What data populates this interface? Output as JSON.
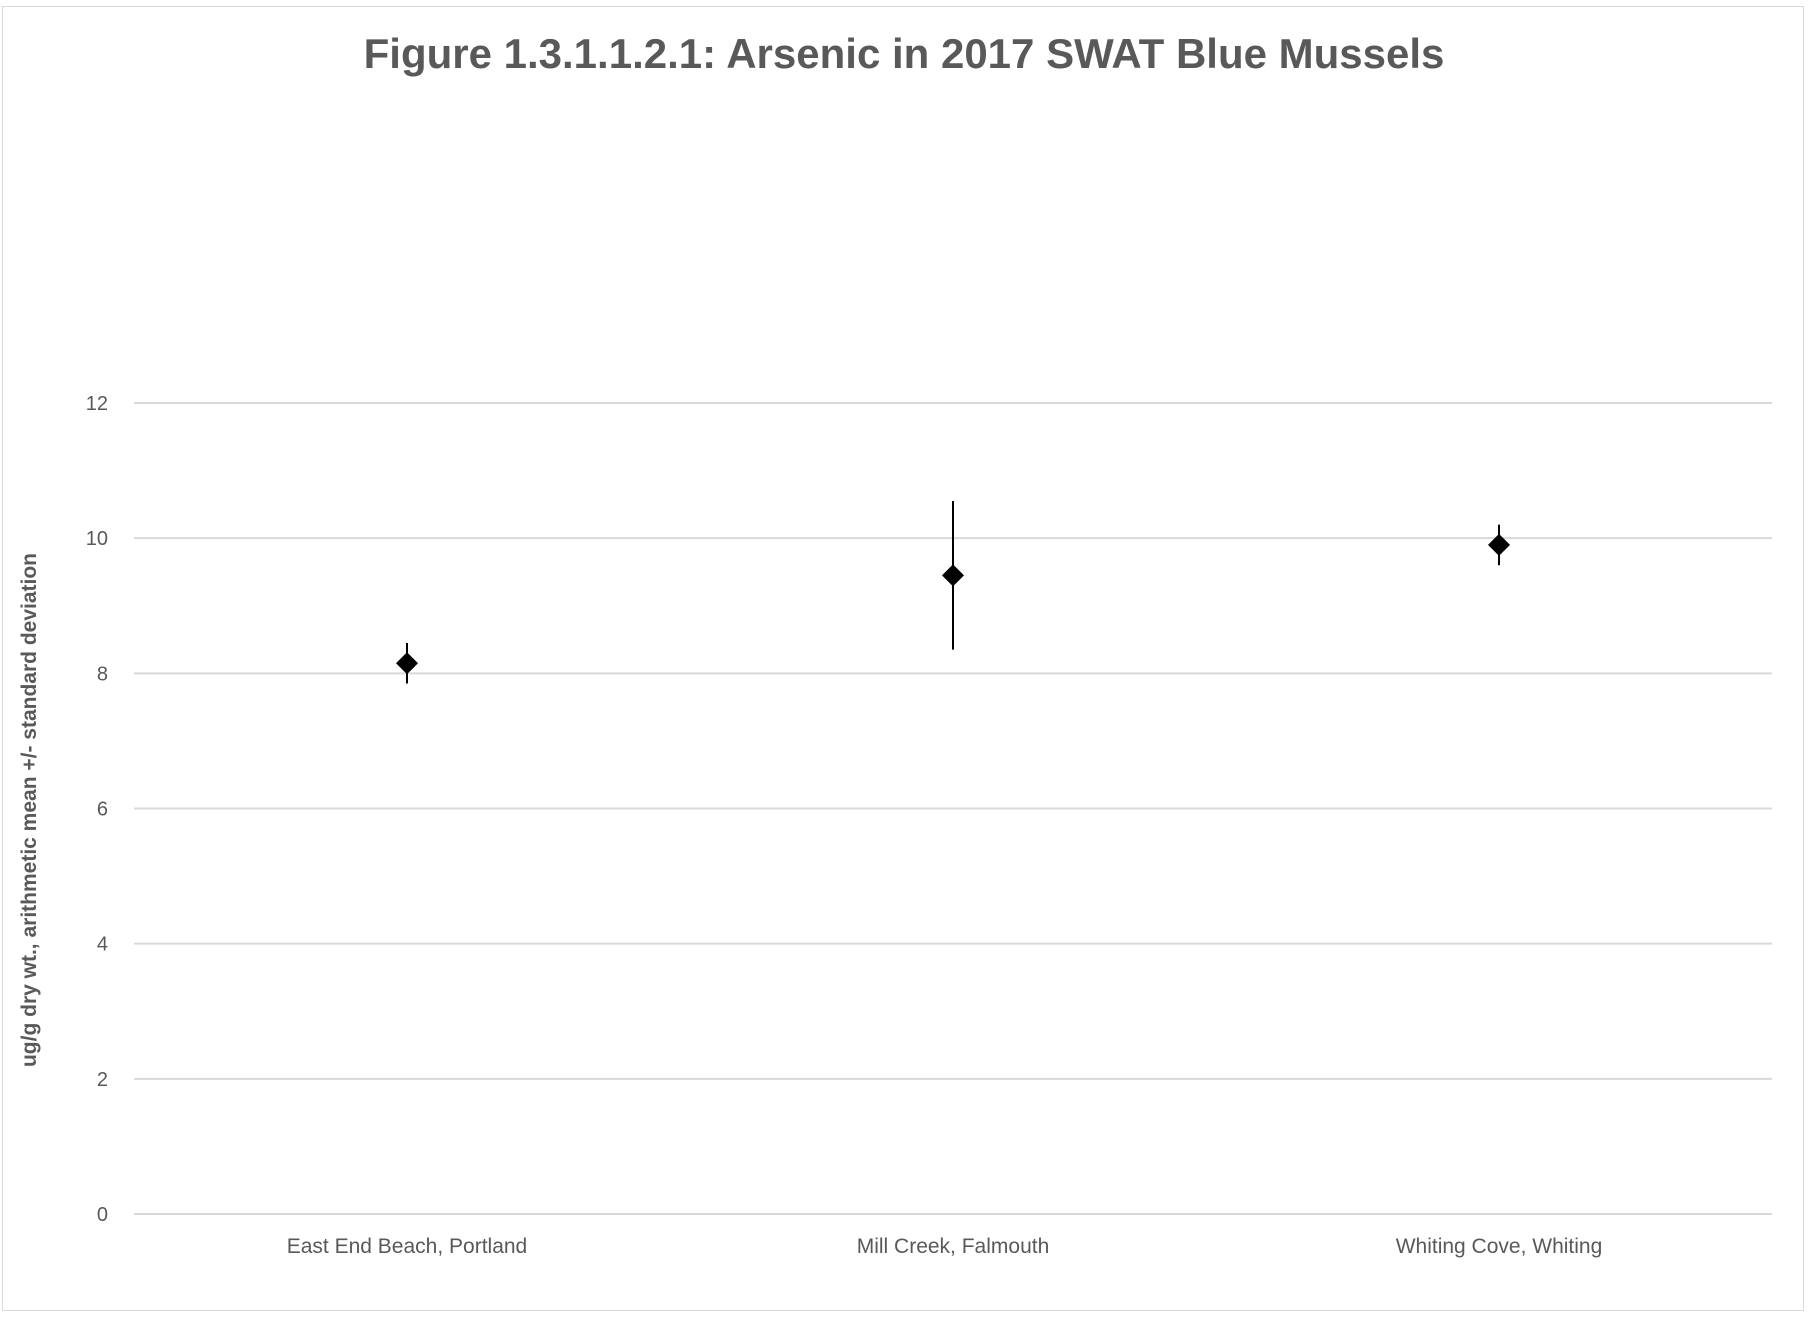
{
  "chart_data": {
    "type": "scatter",
    "title": "Figure 1.3.1.1.2.1:  Arsenic in 2017 SWAT Blue Mussels",
    "xlabel": "",
    "ylabel": "ug/g dry wt., arithmetic mean +/- standard deviation",
    "categories": [
      "East End Beach, Portland",
      "Mill Creek, Falmouth",
      "Whiting Cove, Whiting"
    ],
    "series": [
      {
        "values": [
          8.15,
          9.45,
          9.9
        ],
        "error": [
          0.3,
          1.1,
          0.3
        ]
      }
    ],
    "ylim": [
      0,
      12
    ],
    "yticks": [
      0,
      2,
      4,
      6,
      8,
      10,
      12
    ],
    "grid": true,
    "marker": "diamond",
    "colors": {
      "marker": "#000000",
      "gridline": "#d9d9d9",
      "text": "#595959"
    }
  }
}
